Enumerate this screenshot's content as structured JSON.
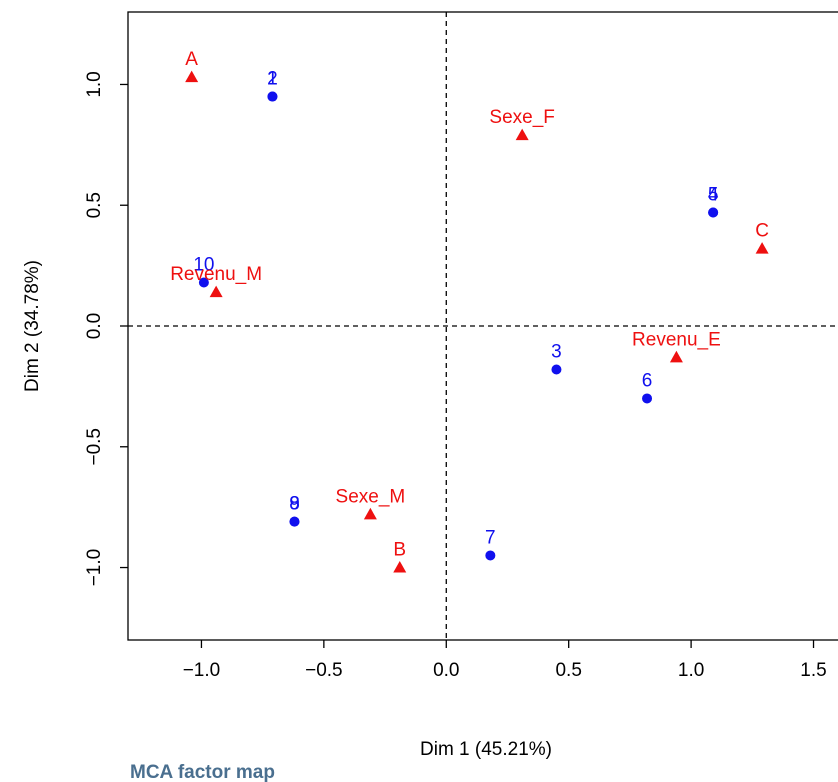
{
  "title": "MCA factor map",
  "chart_data": {
    "type": "scatter",
    "xlabel": "Dim 1 (45.21%)",
    "ylabel": "Dim 2 (34.78%)",
    "xlim": [
      -1.3,
      1.6
    ],
    "ylim": [
      -1.3,
      1.3
    ],
    "xticks": [
      -1.0,
      -0.5,
      0.0,
      0.5,
      1.0,
      1.5
    ],
    "xtick_labels": [
      "−1.0",
      "−0.5",
      "0.0",
      "0.5",
      "1.0",
      "1.5"
    ],
    "yticks": [
      -1.0,
      -0.5,
      0.0,
      0.5,
      1.0
    ],
    "ytick_labels": [
      "−1.0",
      "−0.5",
      "0.0",
      "0.5",
      "1.0"
    ],
    "grid": false,
    "reference_lines": {
      "x": 0,
      "y": 0,
      "style": "dashed"
    },
    "series": [
      {
        "marker": "circle",
        "color": "#1010ee",
        "points": [
          {
            "label": "1",
            "x": -0.71,
            "y": 0.95
          },
          {
            "label": "2",
            "x": -0.71,
            "y": 0.95
          },
          {
            "label": "3",
            "x": 0.45,
            "y": -0.18
          },
          {
            "label": "4",
            "x": 1.09,
            "y": 0.47
          },
          {
            "label": "5",
            "x": 1.09,
            "y": 0.47
          },
          {
            "label": "6",
            "x": 0.82,
            "y": -0.3
          },
          {
            "label": "7",
            "x": 0.18,
            "y": -0.95
          },
          {
            "label": "8",
            "x": -0.62,
            "y": -0.81
          },
          {
            "label": "9",
            "x": -0.62,
            "y": -0.81
          },
          {
            "label": "10",
            "x": -0.99,
            "y": 0.18
          }
        ]
      },
      {
        "marker": "triangle",
        "color": "#ee1010",
        "points": [
          {
            "label": "A",
            "x": -1.04,
            "y": 1.03
          },
          {
            "label": "B",
            "x": -0.19,
            "y": -1.0
          },
          {
            "label": "C",
            "x": 1.29,
            "y": 0.32
          },
          {
            "label": "Sexe_F",
            "x": 0.31,
            "y": 0.79
          },
          {
            "label": "Sexe_M",
            "x": -0.31,
            "y": -0.78
          },
          {
            "label": "Revenu_M",
            "x": -0.94,
            "y": 0.14
          },
          {
            "label": "Revenu_E",
            "x": 0.94,
            "y": -0.13
          }
        ]
      }
    ]
  }
}
